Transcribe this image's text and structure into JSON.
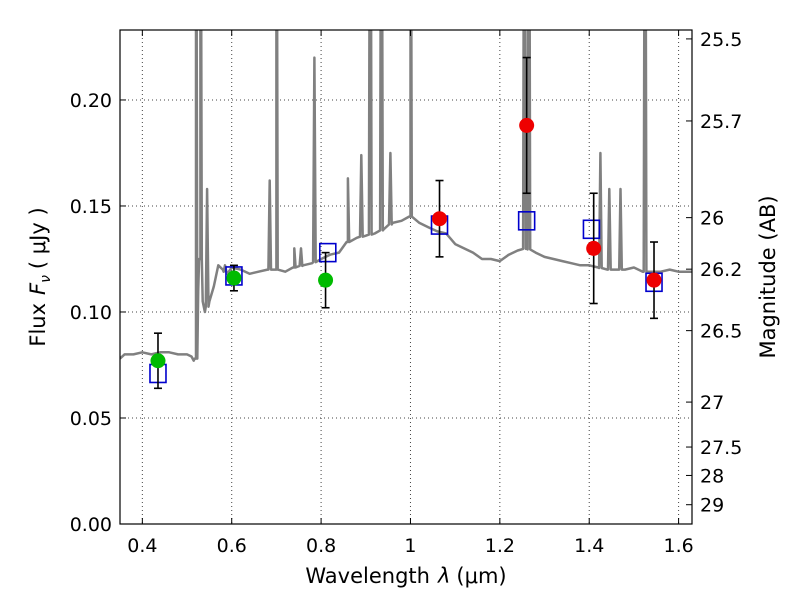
{
  "chart_data": {
    "type": "scatter",
    "title": "",
    "xlabel_prefix": "Wavelength",
    "xlabel_lambda": "λ",
    "xlabel_unit": "(μm)",
    "ylabel_prefix": "Flux",
    "ylabel_f": "F",
    "ylabel_sub": "ν",
    "ylabel_unit": "( μJy )",
    "ylabel_right": "Magnitude (AB)",
    "xlim": [
      0.35,
      1.63
    ],
    "ylim": [
      0.0,
      0.233
    ],
    "grid": true,
    "x_ticks": [
      {
        "value": 0.4,
        "label": "0.4"
      },
      {
        "value": 0.6,
        "label": "0.6"
      },
      {
        "value": 0.8,
        "label": "0.8"
      },
      {
        "value": 1.0,
        "label": "1"
      },
      {
        "value": 1.2,
        "label": "1.2"
      },
      {
        "value": 1.4,
        "label": "1.4"
      },
      {
        "value": 1.6,
        "label": "1.6"
      }
    ],
    "y_ticks": [
      {
        "value": 0.0,
        "label": "0.00"
      },
      {
        "value": 0.05,
        "label": "0.05"
      },
      {
        "value": 0.1,
        "label": "0.10"
      },
      {
        "value": 0.15,
        "label": "0.15"
      },
      {
        "value": 0.2,
        "label": "0.20"
      }
    ],
    "right_ticks": [
      {
        "flux": 0.2288,
        "label": "25.5"
      },
      {
        "flux": 0.1901,
        "label": "25.7"
      },
      {
        "flux": 0.1445,
        "label": "26"
      },
      {
        "flux": 0.1202,
        "label": "26.2"
      },
      {
        "flux": 0.0912,
        "label": "26.5"
      },
      {
        "flux": 0.0575,
        "label": "27"
      },
      {
        "flux": 0.0363,
        "label": "27.5"
      },
      {
        "flux": 0.0229,
        "label": "28"
      },
      {
        "flux": 0.0091,
        "label": "29"
      }
    ],
    "colors": {
      "model": "#808080",
      "optical": "#00bb00",
      "nir": "#ee0000",
      "model_box": "#0000cc",
      "errorbar": "#000000"
    },
    "series": [
      {
        "kind": "line",
        "x": [
          0.35,
          0.36,
          0.38,
          0.4,
          0.42,
          0.44,
          0.46,
          0.48,
          0.5,
          0.51,
          0.515,
          0.52,
          0.523,
          0.525,
          0.53,
          0.535,
          0.54,
          0.55,
          0.56,
          0.57,
          0.58,
          0.59,
          0.6,
          0.62,
          0.64,
          0.66,
          0.68,
          0.7,
          0.72,
          0.74,
          0.76,
          0.78,
          0.8,
          0.82,
          0.84,
          0.86,
          0.88,
          0.9,
          0.92,
          0.94,
          0.96,
          0.98,
          1.0,
          1.02,
          1.04,
          1.06,
          1.08,
          1.1,
          1.12,
          1.14,
          1.16,
          1.18,
          1.2,
          1.22,
          1.24,
          1.26,
          1.28,
          1.3,
          1.32,
          1.34,
          1.36,
          1.38,
          1.4,
          1.42,
          1.44,
          1.46,
          1.48,
          1.5,
          1.52,
          1.54,
          1.56,
          1.58,
          1.6,
          1.63
        ],
        "y": [
          0.078,
          0.08,
          0.08,
          0.081,
          0.08,
          0.081,
          0.081,
          0.08,
          0.08,
          0.079,
          0.077,
          0.078,
          0.085,
          0.11,
          0.125,
          0.105,
          0.1,
          0.105,
          0.112,
          0.122,
          0.12,
          0.118,
          0.121,
          0.12,
          0.118,
          0.119,
          0.12,
          0.12,
          0.119,
          0.121,
          0.122,
          0.123,
          0.125,
          0.127,
          0.128,
          0.133,
          0.135,
          0.136,
          0.137,
          0.139,
          0.142,
          0.143,
          0.145,
          0.142,
          0.14,
          0.138,
          0.137,
          0.132,
          0.13,
          0.128,
          0.125,
          0.125,
          0.124,
          0.127,
          0.129,
          0.13,
          0.128,
          0.126,
          0.125,
          0.124,
          0.123,
          0.122,
          0.122,
          0.121,
          0.12,
          0.12,
          0.12,
          0.121,
          0.119,
          0.119,
          0.119,
          0.12,
          0.119,
          0.119
        ],
        "emission_lines": [
          {
            "x": 0.52,
            "peak": 0.4
          },
          {
            "x": 0.53,
            "peak": 0.4
          },
          {
            "x": 0.545,
            "peak": 0.158
          },
          {
            "x": 0.585,
            "peak": 0.122
          },
          {
            "x": 0.685,
            "peak": 0.162
          },
          {
            "x": 0.7,
            "peak": 0.4
          },
          {
            "x": 0.74,
            "peak": 0.13
          },
          {
            "x": 0.755,
            "peak": 0.13
          },
          {
            "x": 0.785,
            "peak": 0.22
          },
          {
            "x": 0.86,
            "peak": 0.163
          },
          {
            "x": 0.89,
            "peak": 0.174
          },
          {
            "x": 0.91,
            "peak": 0.4
          },
          {
            "x": 0.935,
            "peak": 0.4
          },
          {
            "x": 0.955,
            "peak": 0.175
          },
          {
            "x": 1.0,
            "peak": 0.4
          },
          {
            "x": 1.255,
            "peak": 0.4
          },
          {
            "x": 1.265,
            "peak": 0.4
          },
          {
            "x": 1.425,
            "peak": 0.175
          },
          {
            "x": 1.445,
            "peak": 0.158
          },
          {
            "x": 1.47,
            "peak": 0.158
          },
          {
            "x": 1.525,
            "peak": 0.4
          }
        ]
      },
      {
        "kind": "points",
        "color_key": "optical",
        "x": [
          0.435,
          0.605,
          0.81
        ],
        "y": [
          0.077,
          0.116,
          0.115
        ],
        "err": [
          0.013,
          0.006,
          0.013
        ]
      },
      {
        "kind": "points",
        "color_key": "nir",
        "x": [
          1.065,
          1.26,
          1.41,
          1.545
        ],
        "y": [
          0.144,
          0.188,
          0.13,
          0.115
        ],
        "err": [
          0.018,
          0.032,
          0.026,
          0.018
        ]
      },
      {
        "kind": "boxes",
        "color_key": "model_box",
        "x": [
          0.435,
          0.605,
          0.815,
          1.065,
          1.26,
          1.405,
          1.545
        ],
        "y": [
          0.071,
          0.117,
          0.128,
          0.141,
          0.143,
          0.139,
          0.114
        ]
      }
    ]
  }
}
